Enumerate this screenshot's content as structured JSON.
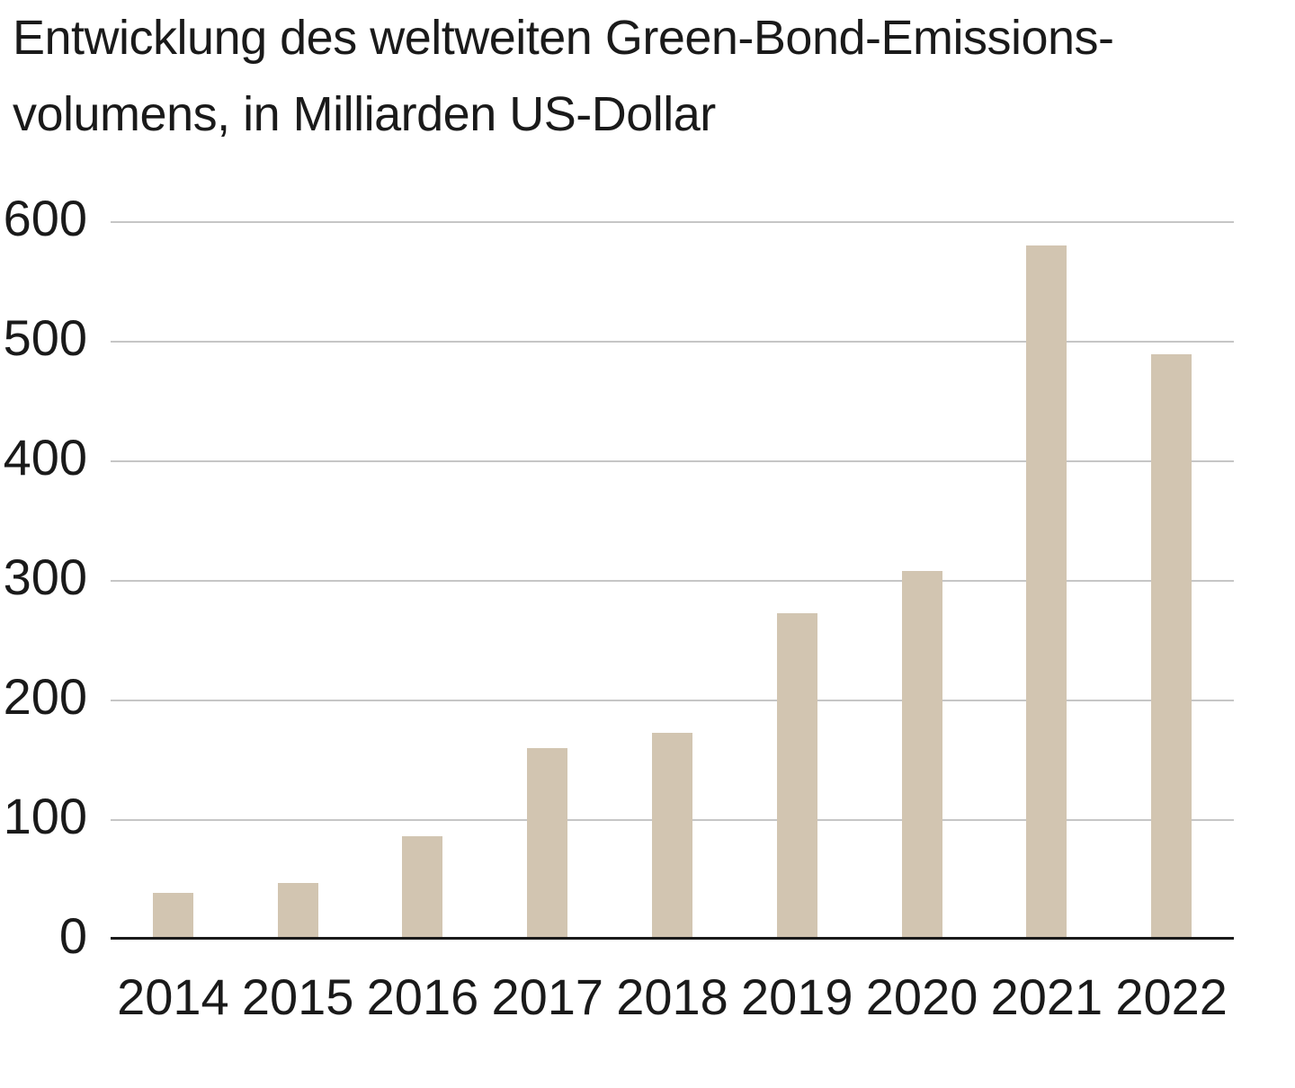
{
  "title": {
    "line1": "Entwicklung des weltweiten Green-Bond-Emissions-",
    "line2": "volumens, in Milliarden US-Dollar"
  },
  "chart_data": {
    "type": "bar",
    "title": "Entwicklung des weltweiten Green-Bond-Emissionsvolumens, in Milliarden US-Dollar",
    "categories": [
      "2014",
      "2015",
      "2016",
      "2017",
      "2018",
      "2019",
      "2020",
      "2021",
      "2022"
    ],
    "values": [
      37,
      45,
      84,
      158,
      171,
      271,
      306,
      578,
      487
    ],
    "xlabel": "",
    "ylabel": "",
    "ylim": [
      0,
      600
    ],
    "yticks": [
      0,
      100,
      200,
      300,
      400,
      500,
      600
    ],
    "grid": true,
    "legend": false,
    "colors": {
      "bar": "#d2c5b1",
      "gridline": "#c6c6c6",
      "axis_line": "#1a1a1a",
      "text": "#1a1a1a",
      "background": "#ffffff"
    }
  }
}
